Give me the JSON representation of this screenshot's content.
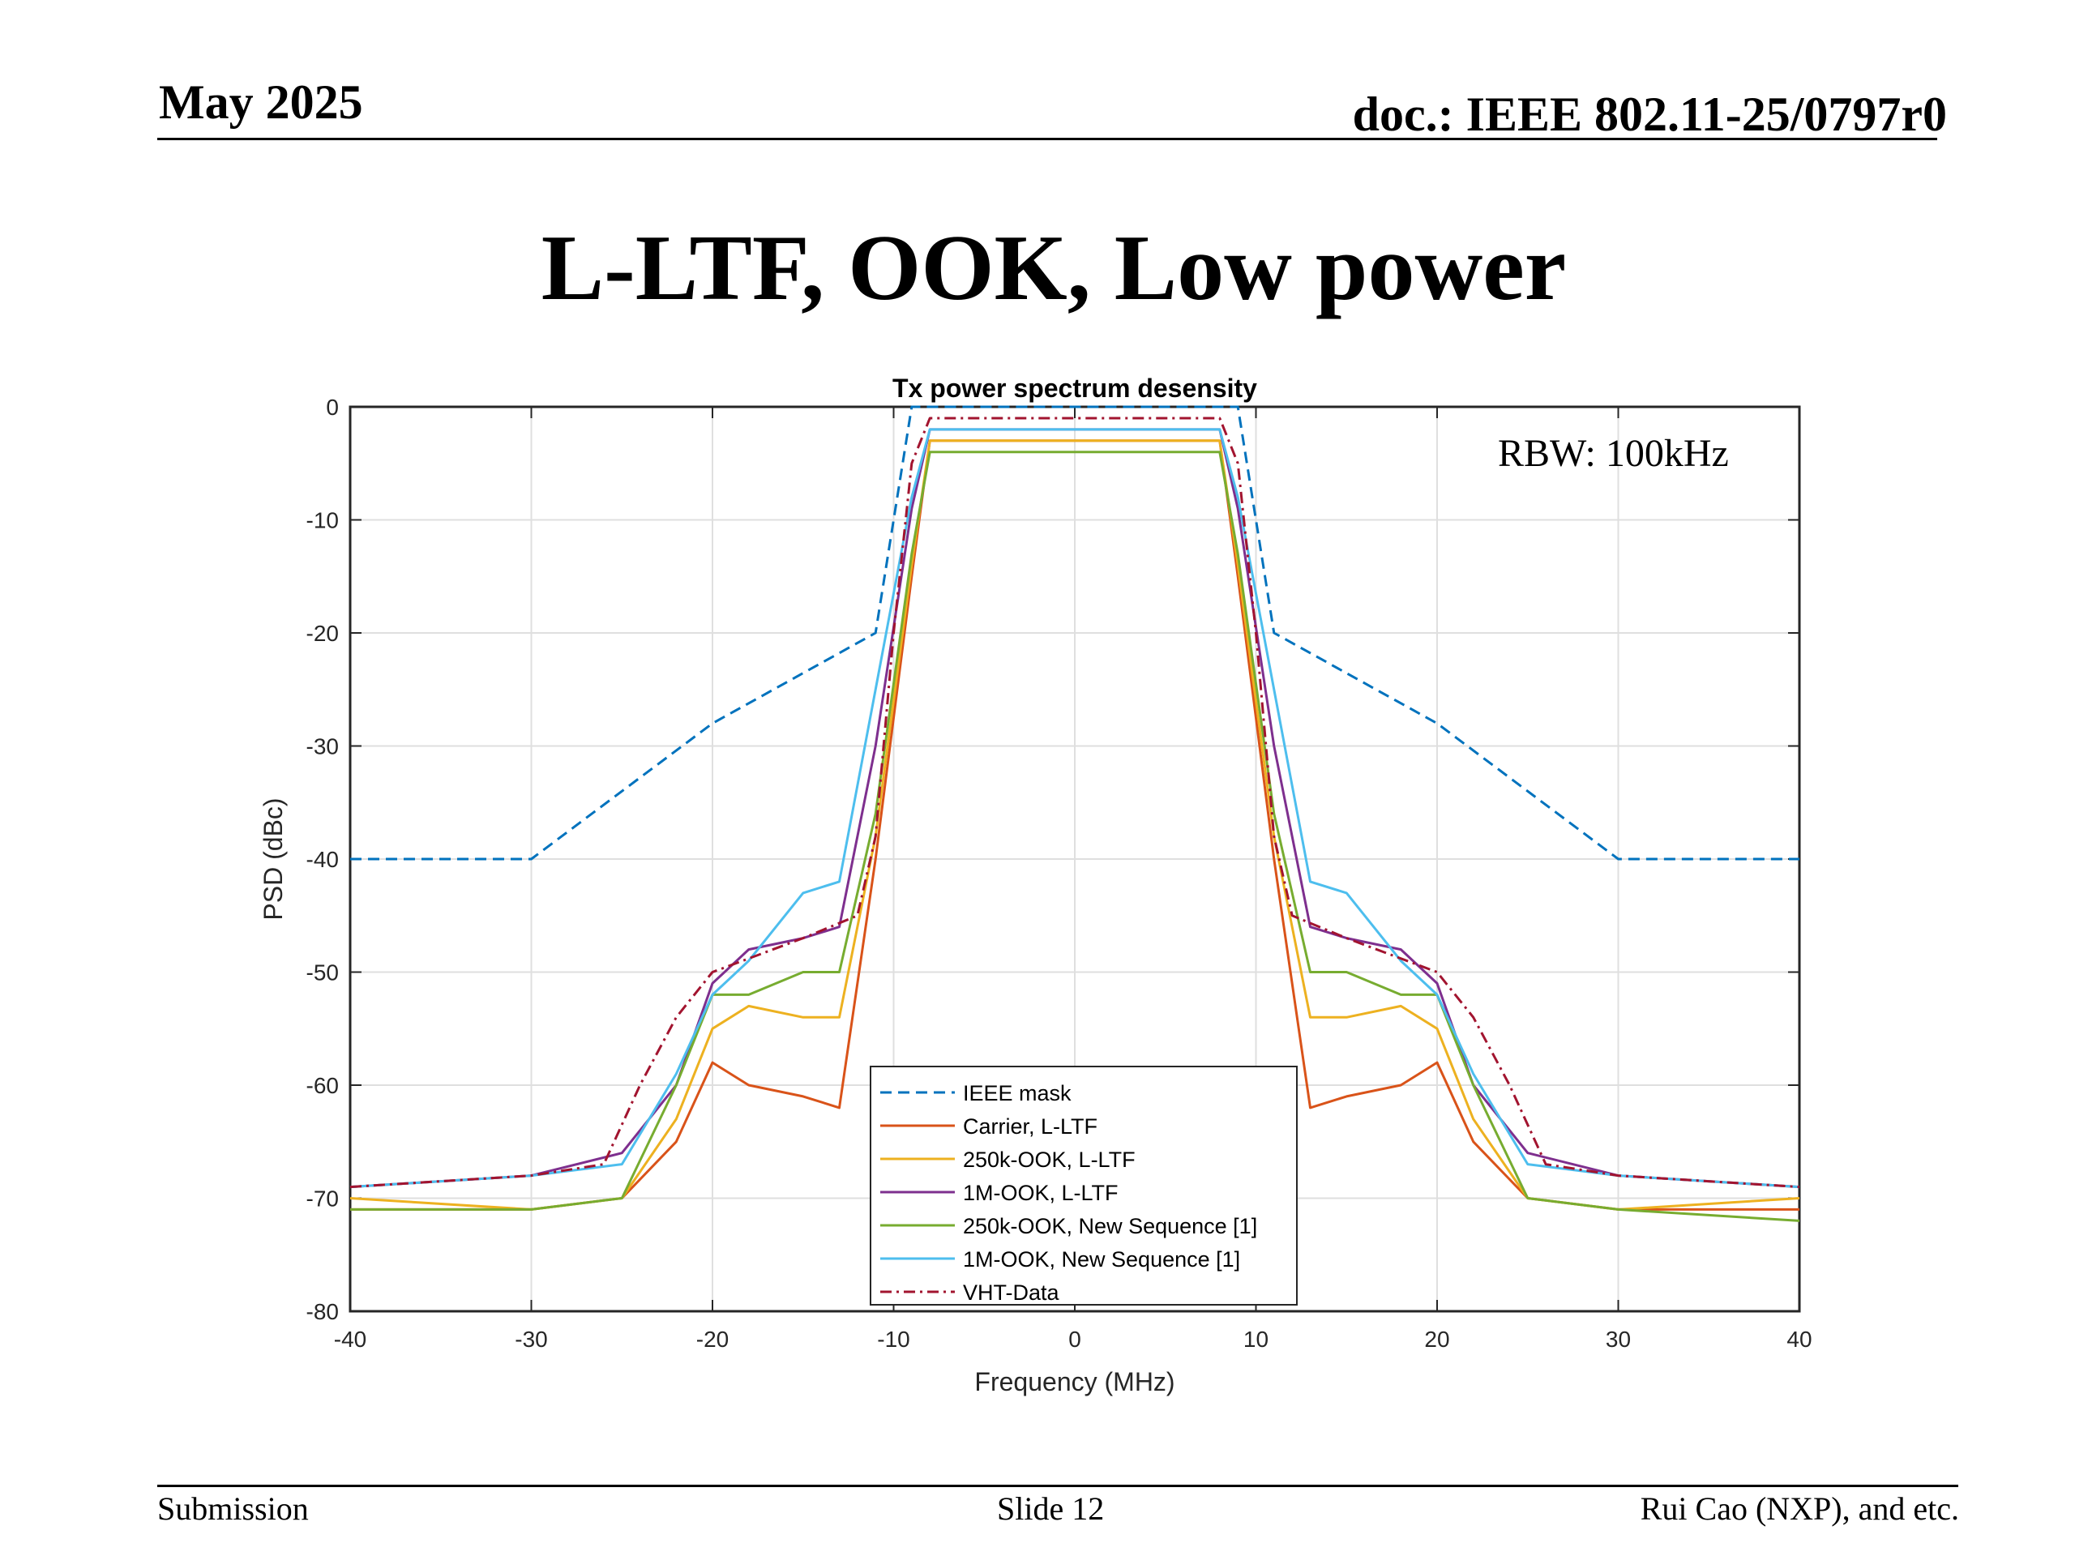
{
  "header": {
    "date": "May 2025",
    "doc": "doc.: IEEE 802.11-25/0797r0"
  },
  "slide_title": "L-LTF, OOK, Low power",
  "footer": {
    "left": "Submission",
    "center": "Slide 12",
    "right": "Rui Cao (NXP), and etc."
  },
  "chart_data": {
    "type": "line",
    "title": "Tx power spectrum desensity",
    "xlabel": "Frequency (MHz)",
    "ylabel": "PSD (dBc)",
    "xlim": [
      -40,
      40
    ],
    "ylim": [
      -80,
      0
    ],
    "xticks": [
      -40,
      -30,
      -20,
      -10,
      0,
      10,
      20,
      30,
      40
    ],
    "yticks": [
      0,
      -10,
      -20,
      -30,
      -40,
      -50,
      -60,
      -70,
      -80
    ],
    "grid": true,
    "legend_position": "bottom-center",
    "annotation": "RBW: 100kHz",
    "series": [
      {
        "name": "IEEE mask",
        "color": "#0072BD",
        "style": "dashed",
        "x": [
          -40,
          -30,
          -20,
          -11,
          -9,
          9,
          11,
          20,
          30,
          40
        ],
        "y": [
          -40,
          -40,
          -28,
          -20,
          0,
          0,
          -20,
          -28,
          -40,
          -40
        ]
      },
      {
        "name": "Carrier, L-LTF",
        "color": "#D95319",
        "style": "solid",
        "x": [
          -40,
          -30,
          -25,
          -22,
          -20,
          -18,
          -15,
          -13,
          -11,
          -9,
          -8,
          0,
          8,
          9,
          11,
          13,
          15,
          18,
          20,
          22,
          25,
          30,
          40
        ],
        "y": [
          -71,
          -71,
          -70,
          -65,
          -58,
          -60,
          -61,
          -62,
          -40,
          -15,
          -3,
          -3,
          -3,
          -15,
          -40,
          -62,
          -61,
          -60,
          -58,
          -65,
          -70,
          -71,
          -71
        ]
      },
      {
        "name": "250k-OOK, L-LTF",
        "color": "#EDB120",
        "style": "solid",
        "x": [
          -40,
          -30,
          -25,
          -22,
          -20,
          -18,
          -15,
          -13,
          -11,
          -9,
          -8,
          0,
          8,
          9,
          11,
          13,
          15,
          18,
          20,
          22,
          25,
          30,
          40
        ],
        "y": [
          -70,
          -71,
          -70,
          -63,
          -55,
          -53,
          -54,
          -54,
          -38,
          -14,
          -3,
          -3,
          -3,
          -14,
          -38,
          -54,
          -54,
          -53,
          -55,
          -63,
          -70,
          -71,
          -70
        ]
      },
      {
        "name": "1M-OOK, L-LTF",
        "color": "#7E2F8E",
        "style": "solid",
        "x": [
          -40,
          -30,
          -25,
          -22,
          -20,
          -18,
          -15,
          -13,
          -11,
          -9,
          -8,
          0,
          8,
          9,
          11,
          13,
          15,
          18,
          20,
          22,
          25,
          30,
          40
        ],
        "y": [
          -69,
          -68,
          -66,
          -60,
          -51,
          -48,
          -47,
          -46,
          -30,
          -9,
          -2,
          -2,
          -2,
          -9,
          -30,
          -46,
          -47,
          -48,
          -51,
          -60,
          -66,
          -68,
          -69
        ]
      },
      {
        "name": "250k-OOK, New Sequence [1]",
        "color": "#77AC30",
        "style": "solid",
        "x": [
          -40,
          -30,
          -25,
          -22,
          -20,
          -18,
          -15,
          -13,
          -11,
          -9,
          -8,
          0,
          8,
          9,
          11,
          13,
          15,
          18,
          20,
          22,
          25,
          30,
          40
        ],
        "y": [
          -71,
          -71,
          -70,
          -60,
          -52,
          -52,
          -50,
          -50,
          -36,
          -13,
          -4,
          -4,
          -4,
          -13,
          -36,
          -50,
          -50,
          -52,
          -52,
          -60,
          -70,
          -71,
          -72
        ]
      },
      {
        "name": "1M-OOK, New Sequence [1]",
        "color": "#4DBEEE",
        "style": "solid",
        "x": [
          -40,
          -30,
          -25,
          -22,
          -20,
          -18,
          -15,
          -13,
          -11,
          -9,
          -8,
          0,
          8,
          9,
          11,
          13,
          15,
          18,
          20,
          22,
          25,
          30,
          40
        ],
        "y": [
          -69,
          -68,
          -67,
          -59,
          -52,
          -49,
          -43,
          -42,
          -25,
          -8,
          -2,
          -2,
          -2,
          -8,
          -25,
          -42,
          -43,
          -49,
          -52,
          -59,
          -67,
          -68,
          -69
        ]
      },
      {
        "name": "VHT-Data",
        "color": "#A2142F",
        "style": "dashdot",
        "x": [
          -40,
          -30,
          -26,
          -24,
          -22,
          -20,
          -15,
          -12,
          -11,
          -10,
          -9,
          -8,
          0,
          8,
          9,
          10,
          11,
          12,
          15,
          20,
          22,
          24,
          26,
          30,
          40
        ],
        "y": [
          -69,
          -68,
          -67,
          -60,
          -54,
          -50,
          -47,
          -45,
          -38,
          -20,
          -5,
          -1,
          -1,
          -1,
          -5,
          -20,
          -38,
          -45,
          -47,
          -50,
          -54,
          -60,
          -67,
          -68,
          -69
        ]
      }
    ]
  }
}
